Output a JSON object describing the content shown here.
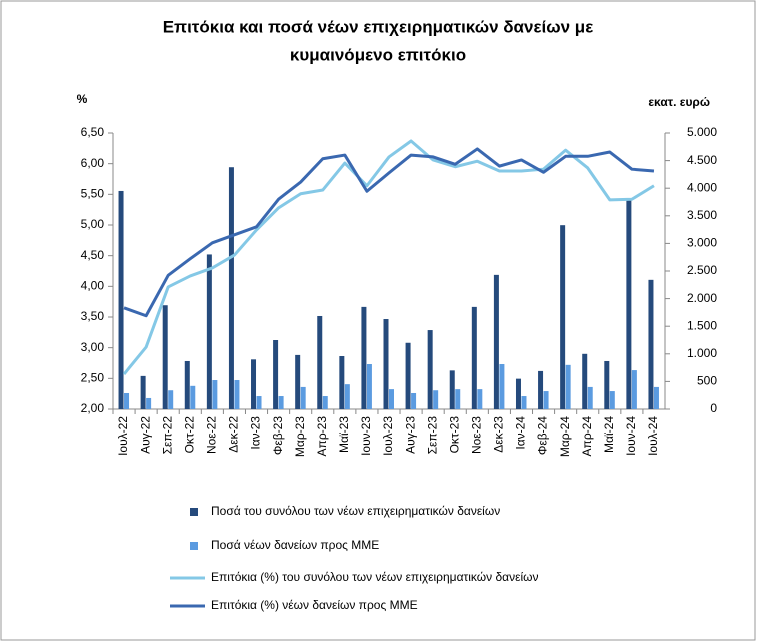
{
  "chart_data": {
    "type": "bar",
    "title": [
      "Επιτόκια και ποσά νέων επιχειρηματικών δανείων με",
      "κυμαινόμενο επιτόκιο"
    ],
    "ylabel": "%",
    "y2label": "εκατ. ευρώ",
    "categories": [
      "Ιουλ-22",
      "Αυγ-22",
      "Σεπ-22",
      "Οκτ-22",
      "Νοε-22",
      "Δεκ-22",
      "Ιαν-23",
      "Φεβ-23",
      "Μαρ-23",
      "Απρ-23",
      "Μαϊ-23",
      "Ιουν-23",
      "Ιουλ-23",
      "Αυγ-23",
      "Σεπ-23",
      "Οκτ-23",
      "Νοε-23",
      "Δεκ-23",
      "Ιαν-24",
      "Φεβ-24",
      "Μαρ-24",
      "Απρ-24",
      "Μαϊ-24",
      "Ιουν-24",
      "Ιουλ-24"
    ],
    "series": [
      {
        "name": "Ποσά του συνόλου των νέων επιχειρηματικών δανείων",
        "type": "bar",
        "axis": "y2",
        "color": "#254a7c",
        "values": [
          3950,
          600,
          1880,
          870,
          2800,
          4380,
          900,
          1250,
          980,
          1685,
          960,
          1850,
          1630,
          1200,
          1430,
          700,
          1850,
          2430,
          550,
          690,
          3330,
          1000,
          870,
          3800,
          2340
        ]
      },
      {
        "name": "Ποσά νέων δανείων προς ΜΜΕ",
        "type": "bar",
        "axis": "y2",
        "color": "#5b9be0",
        "values": [
          290,
          200,
          340,
          420,
          525,
          525,
          235,
          235,
          400,
          235,
          450,
          815,
          360,
          290,
          340,
          360,
          360,
          815,
          235,
          325,
          800,
          400,
          325,
          705,
          400
        ]
      },
      {
        "name": "Επιτόκια (%) του συνόλου των νέων επιχειρηματικών δανείων",
        "type": "line",
        "color": "#84c8e6",
        "values": [
          2.57,
          3.01,
          3.99,
          4.17,
          4.3,
          4.51,
          4.92,
          5.28,
          5.51,
          5.57,
          6.01,
          5.64,
          6.11,
          6.37,
          6.06,
          5.95,
          6.04,
          5.88,
          5.88,
          5.91,
          6.22,
          5.93,
          5.41,
          5.42,
          5.64
        ]
      },
      {
        "name": "Επιτόκια (%) νέων δανείων προς ΜΜΕ",
        "type": "line",
        "color": "#3a68b0",
        "values": [
          3.65,
          3.52,
          4.18,
          4.45,
          4.71,
          4.84,
          4.97,
          5.42,
          5.7,
          6.08,
          6.14,
          5.55,
          5.85,
          6.14,
          6.11,
          5.99,
          6.24,
          5.96,
          6.06,
          5.86,
          6.12,
          6.12,
          6.19,
          5.91,
          5.88
        ]
      }
    ],
    "ylim": [
      2,
      6.5
    ],
    "yticks": [
      {
        "value": 2,
        "label": "2,00"
      },
      {
        "value": 2.5,
        "label": "2,50"
      },
      {
        "value": 3,
        "label": "3,00"
      },
      {
        "value": 3.5,
        "label": "3,50"
      },
      {
        "value": 4,
        "label": "4,00"
      },
      {
        "value": 4.5,
        "label": "4,50"
      },
      {
        "value": 5,
        "label": "5,00"
      },
      {
        "value": 5.5,
        "label": "5,50"
      },
      {
        "value": 6,
        "label": "6,00"
      },
      {
        "value": 6.5,
        "label": "6,50"
      }
    ],
    "y2lim": [
      0,
      5000
    ],
    "y2ticks": [
      0,
      500,
      {
        "value": 1000,
        "label": "1.000"
      },
      {
        "value": 1500,
        "label": "1.500"
      },
      {
        "value": 2000,
        "label": "2.000"
      },
      {
        "value": 2500,
        "label": "2.500"
      },
      {
        "value": 3000,
        "label": "3.000"
      },
      {
        "value": 3500,
        "label": "3.500"
      },
      {
        "value": 4000,
        "label": "4.000"
      },
      {
        "value": 4500,
        "label": "4.500"
      },
      {
        "value": 5000,
        "label": "5.000"
      }
    ],
    "grid": false,
    "legend": "bottom"
  }
}
